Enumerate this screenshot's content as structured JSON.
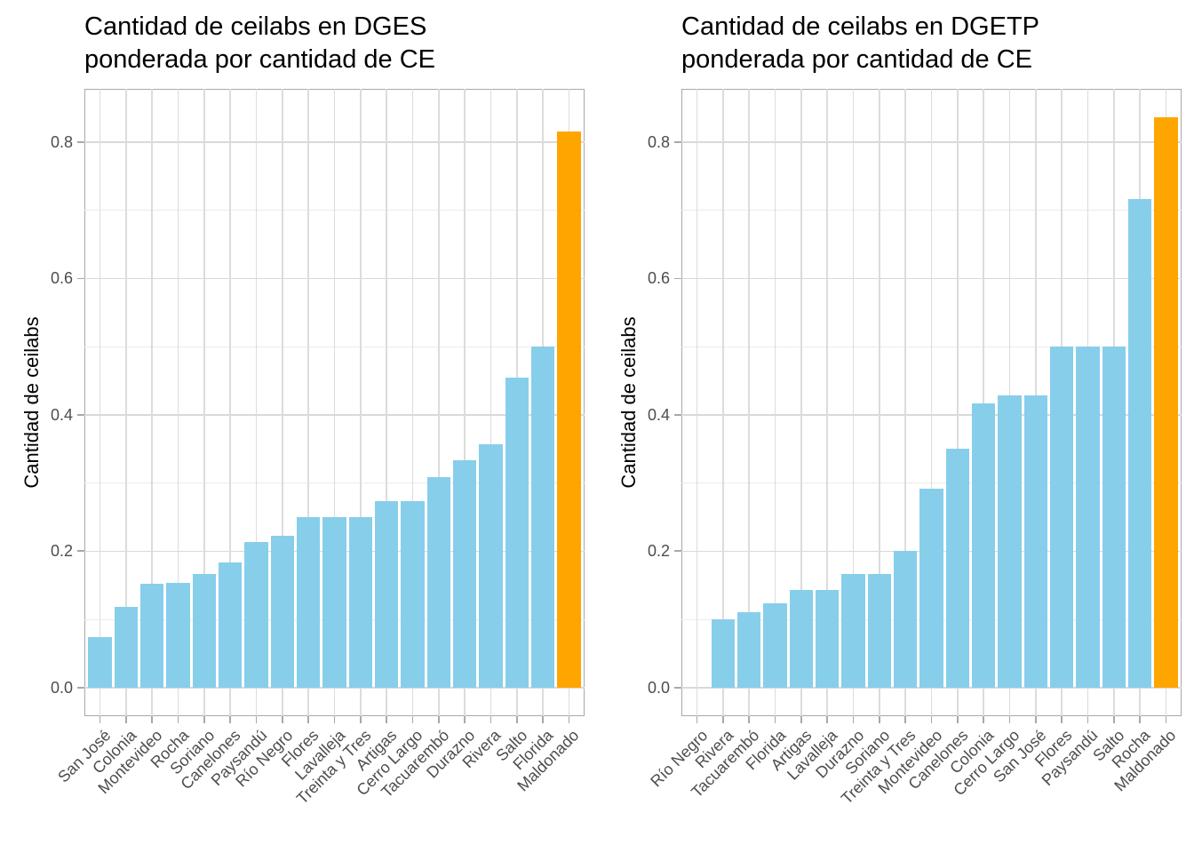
{
  "figure": {
    "background": "#FFFFFF",
    "panel_border_color": "#A8A8A8",
    "grid_major_color": "#D9D9D9",
    "grid_minor_color": "#EBEBEB",
    "tick_label_color": "#4D4D4D",
    "title_color": "#000000",
    "bar_color": "#87CEEB",
    "highlight_color": "#FFA500"
  },
  "chart_data": [
    {
      "type": "bar",
      "title": "Cantidad de ceilabs en DGES ponderada por cantidad de CE",
      "title_line1": "Cantidad de ceilabs en DGES",
      "title_line2": "ponderada por cantidad de CE",
      "xlabel": "",
      "ylabel": "Cantidad de ceilabs",
      "ylim": [
        -0.042,
        0.878
      ],
      "yticks": [
        0.0,
        0.2,
        0.4,
        0.6,
        0.8
      ],
      "ytick_labels": [
        "0.0",
        "0.2",
        "0.4",
        "0.6",
        "0.8"
      ],
      "yticks_minor": [
        0.1,
        0.3,
        0.5,
        0.7
      ],
      "grid": true,
      "legend": "none",
      "categories": [
        "San José",
        "Colonia",
        "Montevideo",
        "Rocha",
        "Soriano",
        "Canelones",
        "Paysandú",
        "Río Negro",
        "Flores",
        "Lavalleja",
        "Treinta y Tres",
        "Artigas",
        "Cerro Largo",
        "Tacuarembó",
        "Durazno",
        "Rivera",
        "Salto",
        "Florida",
        "Maldonado"
      ],
      "values": [
        0.074,
        0.118,
        0.152,
        0.154,
        0.167,
        0.183,
        0.214,
        0.222,
        0.25,
        0.25,
        0.25,
        0.273,
        0.273,
        0.308,
        0.333,
        0.357,
        0.455,
        0.5,
        0.815
      ],
      "highlight_category": "Maldonado",
      "bar_color": "#87CEEB",
      "highlight_color": "#FFA500"
    },
    {
      "type": "bar",
      "title": "Cantidad de ceilabs en DGETP ponderada por cantidad de CE",
      "title_line1": "Cantidad de ceilabs en DGETP",
      "title_line2": "ponderada por cantidad de CE",
      "xlabel": "",
      "ylabel": "Cantidad de ceilabs",
      "ylim": [
        -0.042,
        0.878
      ],
      "yticks": [
        0.0,
        0.2,
        0.4,
        0.6,
        0.8
      ],
      "ytick_labels": [
        "0.0",
        "0.2",
        "0.4",
        "0.6",
        "0.8"
      ],
      "yticks_minor": [
        0.1,
        0.3,
        0.5,
        0.7
      ],
      "grid": true,
      "legend": "none",
      "categories": [
        "Río Negro",
        "Rivera",
        "Tacuarembó",
        "Florida",
        "Artigas",
        "Lavalleja",
        "Durazno",
        "Soriano",
        "Treinta y Tres",
        "Montevideo",
        "Canelones",
        "Colonia",
        "Cerro Largo",
        "San José",
        "Flores",
        "Paysandú",
        "Salto",
        "Rocha",
        "Maldonado"
      ],
      "values": [
        0,
        0.1,
        0.111,
        0.123,
        0.143,
        0.143,
        0.167,
        0.167,
        0.2,
        0.292,
        0.35,
        0.417,
        0.429,
        0.429,
        0.5,
        0.5,
        0.5,
        0.717,
        0.836
      ],
      "highlight_category": "Maldonado",
      "bar_color": "#87CEEB",
      "highlight_color": "#FFA500"
    }
  ]
}
